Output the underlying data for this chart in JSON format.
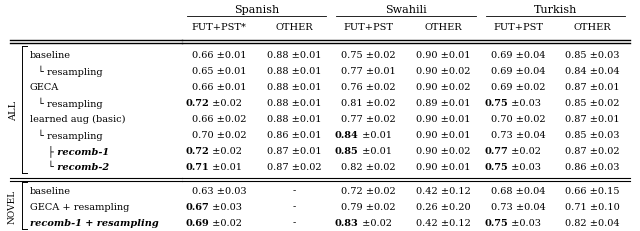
{
  "col_group_labels": [
    "Spanish",
    "Swahili",
    "Turkish"
  ],
  "col_headers": [
    "FUT+PST*",
    "OTHER",
    "FUT+PST",
    "OTHER",
    "FUT+PST",
    "OTHER"
  ],
  "rows": [
    {
      "label": "baseline",
      "indent": 0,
      "italic_label": false,
      "bold_label": false,
      "values": [
        "0.66",
        "0.88",
        "0.75",
        "0.90",
        "0.69",
        "0.85"
      ],
      "pm": [
        "0.01",
        "0.01",
        "0.02",
        "0.01",
        "0.04",
        "0.03"
      ],
      "bold": [
        false,
        false,
        false,
        false,
        false,
        false
      ],
      "section": "ALL"
    },
    {
      "label": "└ resampling",
      "indent": 1,
      "italic_label": false,
      "bold_label": false,
      "values": [
        "0.65",
        "0.88",
        "0.77",
        "0.90",
        "0.69",
        "0.84"
      ],
      "pm": [
        "0.01",
        "0.01",
        "0.01",
        "0.02",
        "0.04",
        "0.04"
      ],
      "bold": [
        false,
        false,
        false,
        false,
        false,
        false
      ],
      "section": "ALL"
    },
    {
      "label": "GECA",
      "indent": 0,
      "italic_label": false,
      "bold_label": false,
      "values": [
        "0.66",
        "0.88",
        "0.76",
        "0.90",
        "0.69",
        "0.87"
      ],
      "pm": [
        "0.01",
        "0.01",
        "0.02",
        "0.02",
        "0.02",
        "0.01"
      ],
      "bold": [
        false,
        false,
        false,
        false,
        false,
        false
      ],
      "section": "ALL"
    },
    {
      "label": "└ resampling",
      "indent": 1,
      "italic_label": false,
      "bold_label": false,
      "values": [
        "0.72",
        "0.88",
        "0.81",
        "0.89",
        "0.75",
        "0.85"
      ],
      "pm": [
        "0.02",
        "0.01",
        "0.02",
        "0.01",
        "0.03",
        "0.02"
      ],
      "bold": [
        true,
        false,
        false,
        false,
        true,
        false
      ],
      "section": "ALL"
    },
    {
      "label": "learned aug (basic)",
      "indent": 0,
      "italic_label": false,
      "bold_label": false,
      "values": [
        "0.66",
        "0.88",
        "0.77",
        "0.90",
        "0.70",
        "0.87"
      ],
      "pm": [
        "0.02",
        "0.01",
        "0.02",
        "0.01",
        "0.02",
        "0.01"
      ],
      "bold": [
        false,
        false,
        false,
        false,
        false,
        false
      ],
      "section": "ALL"
    },
    {
      "label": "└ resampling",
      "indent": 1,
      "italic_label": false,
      "bold_label": false,
      "values": [
        "0.70",
        "0.86",
        "0.84",
        "0.90",
        "0.73",
        "0.85"
      ],
      "pm": [
        "0.02",
        "0.01",
        "0.01",
        "0.01",
        "0.04",
        "0.03"
      ],
      "bold": [
        false,
        false,
        true,
        false,
        false,
        false
      ],
      "section": "ALL"
    },
    {
      "label": "├ recomb-1",
      "indent": 2,
      "italic_label": true,
      "bold_label": true,
      "values": [
        "0.72",
        "0.87",
        "0.85",
        "0.90",
        "0.77",
        "0.87"
      ],
      "pm": [
        "0.02",
        "0.01",
        "0.01",
        "0.02",
        "0.02",
        "0.02"
      ],
      "bold": [
        true,
        false,
        true,
        false,
        true,
        false
      ],
      "section": "ALL"
    },
    {
      "label": "└ recomb-2",
      "indent": 2,
      "italic_label": true,
      "bold_label": true,
      "values": [
        "0.71",
        "0.87",
        "0.82",
        "0.90",
        "0.75",
        "0.86"
      ],
      "pm": [
        "0.01",
        "0.02",
        "0.02",
        "0.01",
        "0.03",
        "0.03"
      ],
      "bold": [
        true,
        false,
        false,
        false,
        true,
        false
      ],
      "section": "ALL"
    },
    {
      "label": "baseline",
      "indent": 0,
      "italic_label": false,
      "bold_label": false,
      "values": [
        "0.63",
        "-",
        "0.72",
        "0.42",
        "0.68",
        "0.66"
      ],
      "pm": [
        "0.03",
        "",
        "0.02",
        "0.12",
        "0.04",
        "0.15"
      ],
      "bold": [
        false,
        false,
        false,
        false,
        false,
        false
      ],
      "section": "NOVEL"
    },
    {
      "label": "GECA + resampling",
      "indent": 0,
      "italic_label": false,
      "bold_label": false,
      "values": [
        "0.67",
        "-",
        "0.79",
        "0.26",
        "0.73",
        "0.71"
      ],
      "pm": [
        "0.03",
        "",
        "0.02",
        "0.20",
        "0.04",
        "0.10"
      ],
      "bold": [
        true,
        false,
        false,
        false,
        false,
        false
      ],
      "section": "NOVEL"
    },
    {
      "label": "recomb-1 + resampling",
      "indent": 0,
      "italic_label": true,
      "bold_label": true,
      "values": [
        "0.69",
        "-",
        "0.83",
        "0.42",
        "0.75",
        "0.82"
      ],
      "pm": [
        "0.02",
        "",
        "0.02",
        "0.12",
        "0.03",
        "0.04"
      ],
      "bold": [
        true,
        false,
        true,
        false,
        true,
        false
      ],
      "section": "NOVEL"
    }
  ],
  "figsize": [
    6.4,
    2.31
  ],
  "dpi": 100
}
